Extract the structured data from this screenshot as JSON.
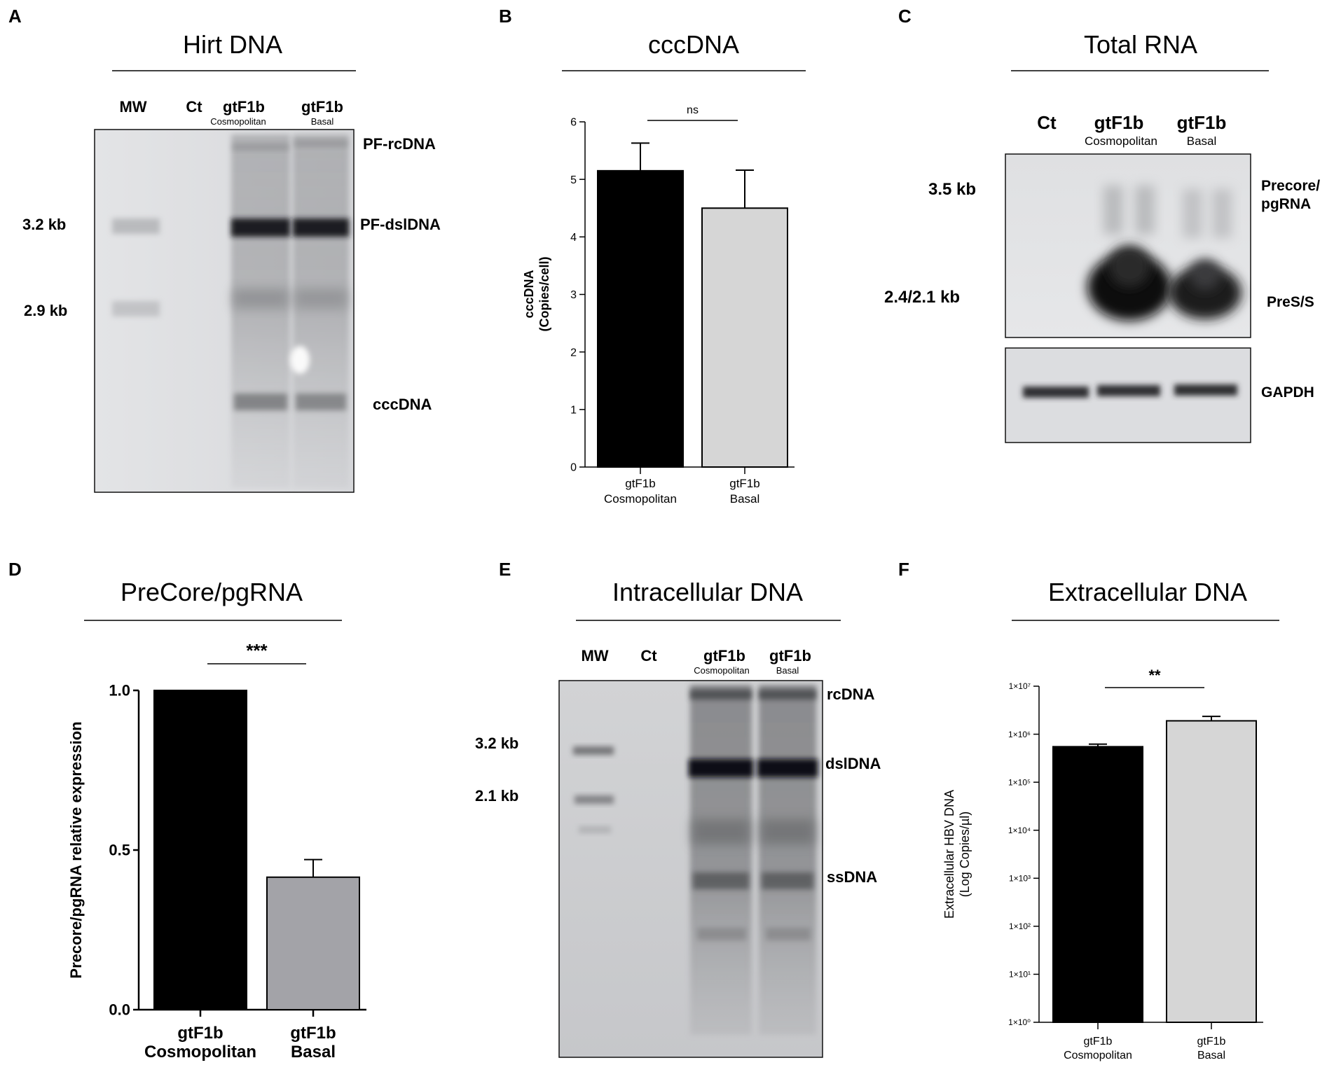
{
  "panels": [
    {
      "letter": "A",
      "title": "Hirt DNA",
      "lanes": [
        {
          "name": "MW",
          "sub": ""
        },
        {
          "name": "Ct",
          "sub": ""
        },
        {
          "name": "gtF1b",
          "sub": "Cosmopolitan"
        },
        {
          "name": "gtF1b",
          "sub": "Basal"
        }
      ],
      "markers": [
        "3.2 kb",
        "2.9 kb"
      ],
      "bands": [
        "PF-rcDNA",
        "PF-dslDNA",
        "cccDNA"
      ]
    },
    {
      "letter": "B",
      "title": "cccDNA"
    },
    {
      "letter": "C",
      "title": "Total RNA",
      "lanes": [
        {
          "name": "Ct",
          "sub": ""
        },
        {
          "name": "gtF1b",
          "sub": "Cosmopolitan"
        },
        {
          "name": "gtF1b",
          "sub": "Basal"
        }
      ],
      "markers": [
        "3.5 kb",
        "2.4/2.1 kb"
      ],
      "bands": [
        "Precore/",
        "pgRNA",
        "PreS/S",
        "GAPDH"
      ]
    },
    {
      "letter": "D",
      "title": "PreCore/pgRNA"
    },
    {
      "letter": "E",
      "title": "Intracellular DNA",
      "lanes": [
        {
          "name": "MW",
          "sub": ""
        },
        {
          "name": "Ct",
          "sub": ""
        },
        {
          "name": "gtF1b",
          "sub": "Cosmopolitan"
        },
        {
          "name": "gtF1b",
          "sub": "Basal"
        }
      ],
      "markers": [
        "3.2 kb",
        "2.1 kb"
      ],
      "bands": [
        "rcDNA",
        "dslDNA",
        "ssDNA"
      ]
    },
    {
      "letter": "F",
      "title": "Extracellular DNA"
    }
  ],
  "chart_data": [
    {
      "panel": "B",
      "type": "bar",
      "title": "cccDNA",
      "ylabel": [
        "cccDNA",
        "(Copies/cell)"
      ],
      "categories": [
        [
          "gtF1b",
          "Cosmopolitan"
        ],
        [
          "gtF1b",
          "Basal"
        ]
      ],
      "values": [
        5.15,
        4.5
      ],
      "errors": [
        0.48,
        0.66
      ],
      "ylim": [
        0,
        6
      ],
      "yticks": [
        "0",
        "1",
        "2",
        "3",
        "4",
        "5",
        "6"
      ],
      "bar_colors": [
        "#000000",
        "#d6d6d6"
      ],
      "significance": "ns"
    },
    {
      "panel": "D",
      "type": "bar",
      "title": "PreCore/pgRNA",
      "ylabel": [
        "Precore/pgRNA relative expression"
      ],
      "categories": [
        [
          "gtF1b",
          "Cosmopolitan"
        ],
        [
          "gtF1b",
          "Basal"
        ]
      ],
      "values": [
        1.0,
        0.415
      ],
      "errors": [
        0.0,
        0.055
      ],
      "ylim": [
        0,
        1.0
      ],
      "yticks": [
        "0.0",
        "0.5",
        "1.0"
      ],
      "bar_colors": [
        "#000000",
        "#a3a3a8"
      ],
      "significance": "***"
    },
    {
      "panel": "F",
      "type": "bar",
      "log_scale": true,
      "title": "Extracellular DNA",
      "ylabel": [
        "Extracellular HBV DNA",
        "(Log Copies/µl)"
      ],
      "categories": [
        [
          "gtF1b",
          "Cosmopolitan"
        ],
        [
          "gtF1b",
          "Basal"
        ]
      ],
      "values": [
        550000,
        1900000
      ],
      "error_tops": [
        620000,
        2350000
      ],
      "ylim": [
        1,
        10000000
      ],
      "yticks": [
        "1×10⁰",
        "1×10¹",
        "1×10²",
        "1×10³",
        "1×10⁴",
        "1×10⁵",
        "1×10⁶",
        "1×10⁷"
      ],
      "bar_colors": [
        "#000000",
        "#d6d6d6"
      ],
      "significance": "**"
    }
  ]
}
